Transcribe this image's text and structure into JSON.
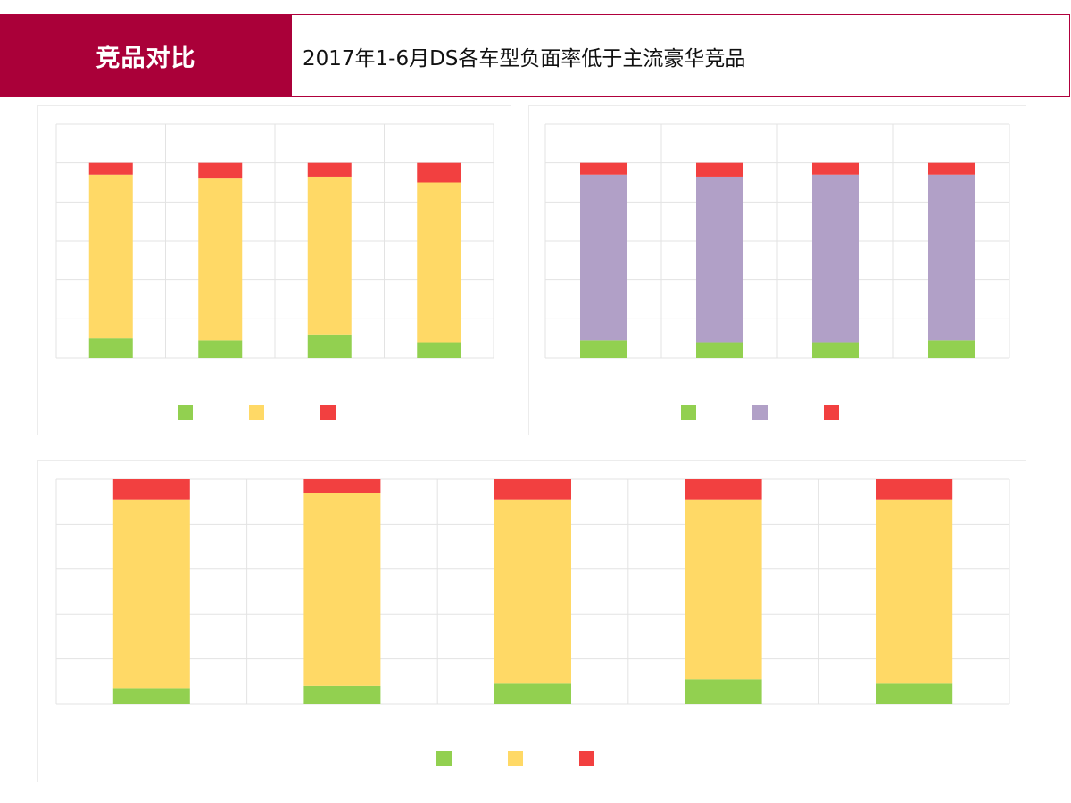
{
  "header": {
    "tag": "竞品对比",
    "title": "2017年1-6月DS各车型负面率低于主流豪华竞品"
  },
  "colors": {
    "brand": "#aa0039",
    "green": "#92d050",
    "yellow": "#ffd966",
    "purple": "#b1a0c7",
    "red": "#f24040",
    "grid": "#e3e3e3"
  },
  "chart_data": [
    {
      "type": "bar",
      "stacked": true,
      "categories": [
        "",
        "",
        "",
        ""
      ],
      "series": [
        {
          "color": "#92d050",
          "values": [
            10,
            9,
            12,
            8
          ]
        },
        {
          "color": "#ffd966",
          "values": [
            84,
            83,
            81,
            82
          ]
        },
        {
          "color": "#f24040",
          "values": [
            6,
            8,
            7,
            10
          ]
        }
      ],
      "ylim": [
        0,
        120
      ],
      "grid": true,
      "legend": "bottom",
      "legend_labels": [
        "",
        "",
        ""
      ]
    },
    {
      "type": "bar",
      "stacked": true,
      "categories": [
        "",
        "",
        "",
        ""
      ],
      "series": [
        {
          "color": "#92d050",
          "values": [
            9,
            8,
            8,
            9
          ]
        },
        {
          "color": "#b1a0c7",
          "values": [
            85,
            85,
            86,
            85
          ]
        },
        {
          "color": "#b1a0c7",
          "values": [
            0,
            0,
            0,
            0
          ]
        },
        {
          "color": "#f24040",
          "values": [
            6,
            7,
            6,
            6
          ]
        }
      ],
      "ylim": [
        0,
        120
      ],
      "grid": true,
      "legend": "bottom",
      "legend_labels": [
        "",
        "",
        ""
      ]
    },
    {
      "type": "bar",
      "stacked": true,
      "categories": [
        "",
        "",
        "",
        "",
        ""
      ],
      "series": [
        {
          "color": "#92d050",
          "values": [
            7,
            8,
            9,
            11,
            9
          ]
        },
        {
          "color": "#ffd966",
          "values": [
            84,
            86,
            82,
            80,
            82
          ]
        },
        {
          "color": "#f24040",
          "values": [
            9,
            6,
            9,
            9,
            9
          ]
        }
      ],
      "ylim": [
        0,
        100
      ],
      "grid": true,
      "legend": "bottom",
      "legend_labels": [
        "",
        "",
        ""
      ]
    }
  ]
}
